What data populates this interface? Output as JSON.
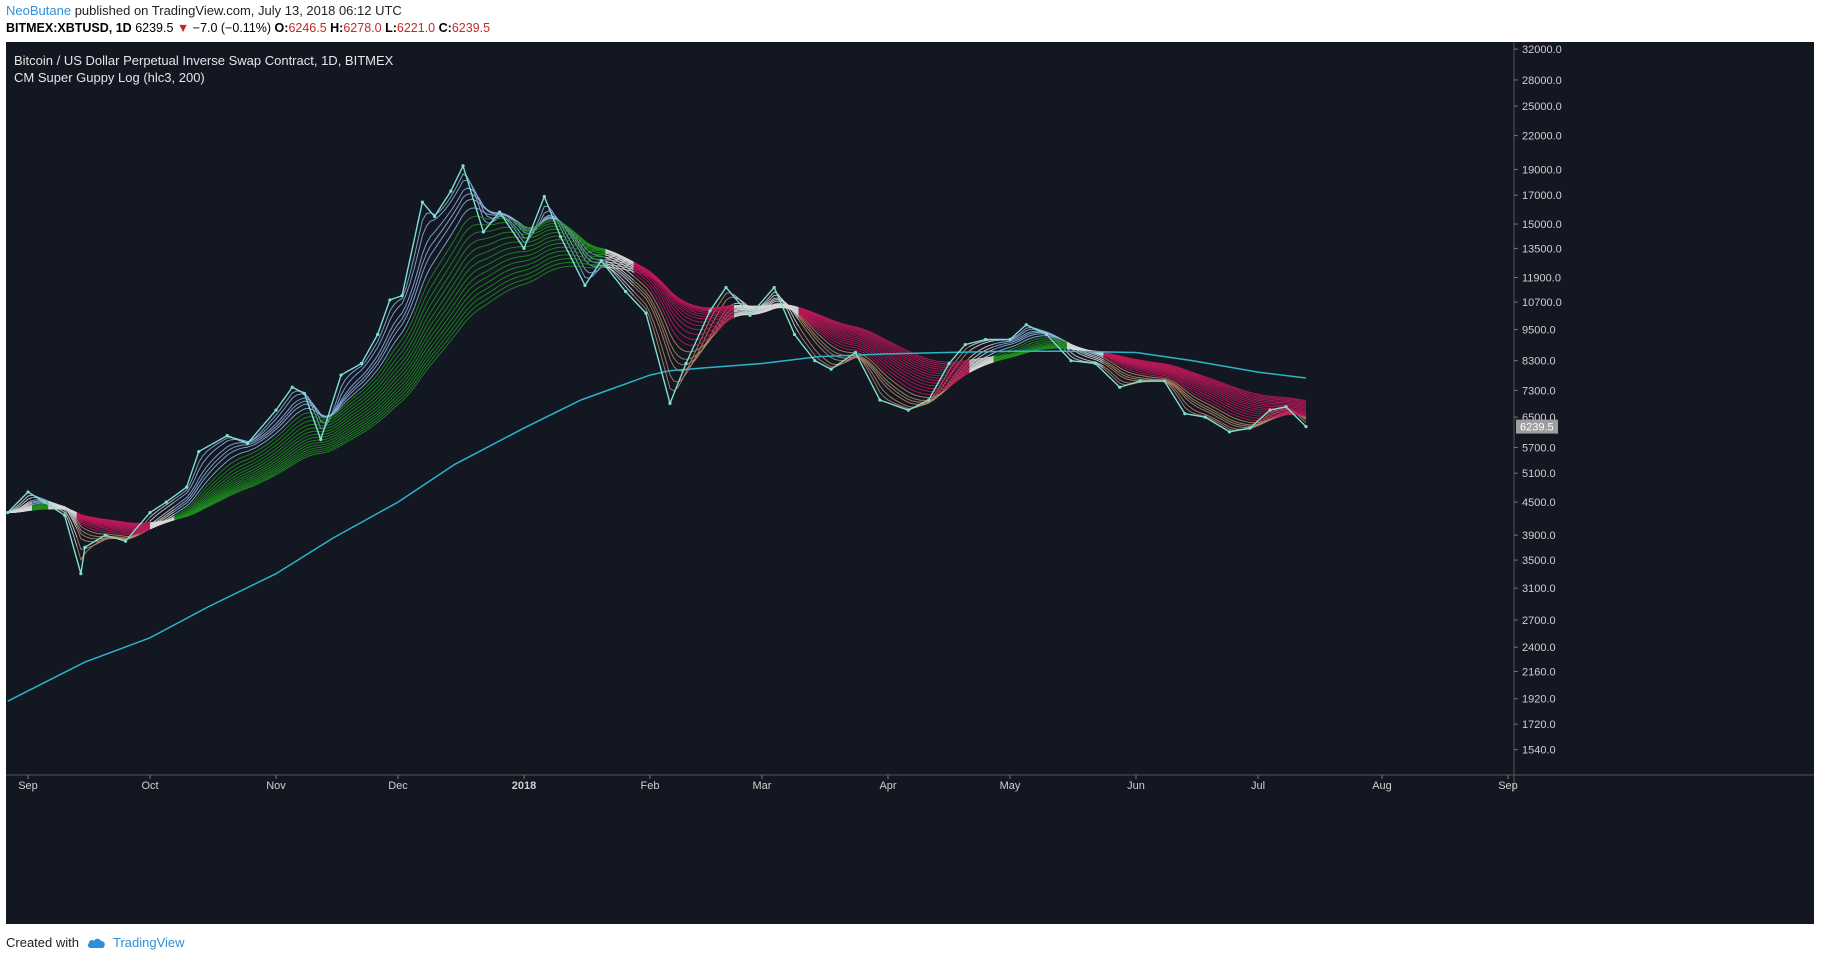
{
  "header": {
    "author": "NeoButane",
    "published": "published on TradingView.com, July 13, 2018 06:12 UTC",
    "symbol": "BITMEX:XBTUSD, 1D",
    "last": "6239.5",
    "change": "−7.0 (−0.11%)",
    "o_label": "O:",
    "o": "6246.5",
    "h_label": "H:",
    "h": "6278.0",
    "l_label": "L:",
    "l": "6221.0",
    "c_label": "C:",
    "c": "6239.5"
  },
  "chart_titles": {
    "title": "Bitcoin / US Dollar Perpetual Inverse Swap Contract, 1D, BITMEX",
    "indicator": "CM Super Guppy Log (hlc3, 200)"
  },
  "footer": {
    "created_with": "Created with",
    "brand": "TradingView"
  },
  "colors": {
    "background": "#131722",
    "axis_bg": "#131722",
    "price_line": "#7fe0d0",
    "ma200": "#2bb5c9",
    "ribbon_green": "#1f8f1f",
    "ribbon_white": "#d8d8d8",
    "ribbon_red": "#c2185b",
    "last_price_bg": "#9e9e9e"
  },
  "chart_data": {
    "type": "line",
    "title": "Bitcoin / US Dollar Perpetual Inverse Swap Contract, 1D, BITMEX",
    "y_scale": "log",
    "ylim": [
      1380,
      33000
    ],
    "y_ticks": [
      "32000.0",
      "28000.0",
      "25000.0",
      "22000.0",
      "19000.0",
      "17000.0",
      "15000.0",
      "13500.0",
      "11900.0",
      "10700.0",
      "9500.0",
      "8300.0",
      "7300.0",
      "6500.0",
      "5700.0",
      "5100.0",
      "4500.0",
      "3900.0",
      "3500.0",
      "3100.0",
      "2700.0",
      "2400.0",
      "2160.0",
      "1920.0",
      "1720.0",
      "1540.0"
    ],
    "x_ticks": [
      "Sep",
      "Oct",
      "Nov",
      "Dec",
      "2018",
      "Feb",
      "Mar",
      "Apr",
      "May",
      "Jun",
      "Jul",
      "Aug",
      "Sep"
    ],
    "x_tick_dates": [
      "2017-09-01",
      "2017-10-01",
      "2017-11-01",
      "2017-12-01",
      "2018-01-01",
      "2018-02-01",
      "2018-03-01",
      "2018-04-01",
      "2018-05-01",
      "2018-06-01",
      "2018-07-01",
      "2018-08-01",
      "2018-09-01"
    ],
    "last_price_label": "6239.5",
    "series": [
      {
        "name": "",
        "dates": [
          "2017-08-27",
          "2017-09-01",
          "2017-09-05",
          "2017-09-10",
          "2017-09-14",
          "2017-09-15",
          "2017-09-20",
          "2017-09-25",
          "2017-10-01",
          "2017-10-05",
          "2017-10-10",
          "2017-10-13",
          "2017-10-20",
          "2017-10-25",
          "2017-11-01",
          "2017-11-05",
          "2017-11-08",
          "2017-11-12",
          "2017-11-17",
          "2017-11-22",
          "2017-11-26",
          "2017-11-29",
          "2017-12-02",
          "2017-12-07",
          "2017-12-10",
          "2017-12-14",
          "2017-12-17",
          "2017-12-22",
          "2017-12-26",
          "2018-01-01",
          "2018-01-06",
          "2018-01-10",
          "2018-01-16",
          "2018-01-20",
          "2018-01-26",
          "2018-01-31",
          "2018-02-06",
          "2018-02-10",
          "2018-02-16",
          "2018-02-20",
          "2018-02-26",
          "2018-03-04",
          "2018-03-09",
          "2018-03-14",
          "2018-03-18",
          "2018-03-24",
          "2018-03-30",
          "2018-04-06",
          "2018-04-11",
          "2018-04-16",
          "2018-04-20",
          "2018-04-25",
          "2018-05-01",
          "2018-05-05",
          "2018-05-10",
          "2018-05-16",
          "2018-05-22",
          "2018-05-28",
          "2018-06-02",
          "2018-06-08",
          "2018-06-13",
          "2018-06-18",
          "2018-06-24",
          "2018-06-29",
          "2018-07-04",
          "2018-07-08",
          "2018-07-13"
        ],
        "values": [
          4300,
          4700,
          4500,
          4250,
          3300,
          3700,
          3900,
          3800,
          4300,
          4500,
          4800,
          5600,
          6000,
          5800,
          6700,
          7400,
          7200,
          5900,
          7800,
          8200,
          9300,
          10800,
          11000,
          16500,
          15500,
          17300,
          19300,
          14500,
          15800,
          13500,
          16900,
          14200,
          11500,
          12800,
          11200,
          10200,
          6900,
          8200,
          10300,
          11400,
          10100,
          11400,
          9300,
          8300,
          8000,
          8600,
          7000,
          6700,
          7000,
          8200,
          8900,
          9100,
          9100,
          9700,
          9300,
          8300,
          8200,
          7400,
          7600,
          7600,
          6600,
          6500,
          6100,
          6200,
          6700,
          6800,
          6240
        ]
      },
      {
        "name": "",
        "dates": [
          "2017-08-27",
          "2017-09-15",
          "2017-10-01",
          "2017-10-15",
          "2017-11-01",
          "2017-11-15",
          "2017-12-01",
          "2017-12-15",
          "2018-01-01",
          "2018-01-15",
          "2018-02-01",
          "2018-02-06",
          "2018-02-15",
          "2018-03-01",
          "2018-03-15",
          "2018-04-01",
          "2018-04-15",
          "2018-05-01",
          "2018-05-15",
          "2018-06-01",
          "2018-06-15",
          "2018-07-01",
          "2018-07-13"
        ],
        "values": [
          1900,
          2250,
          2500,
          2850,
          3300,
          3850,
          4500,
          5300,
          6200,
          7000,
          7800,
          7950,
          8050,
          8200,
          8450,
          8550,
          8600,
          8650,
          8650,
          8600,
          8300,
          7900,
          7700
        ]
      }
    ]
  }
}
